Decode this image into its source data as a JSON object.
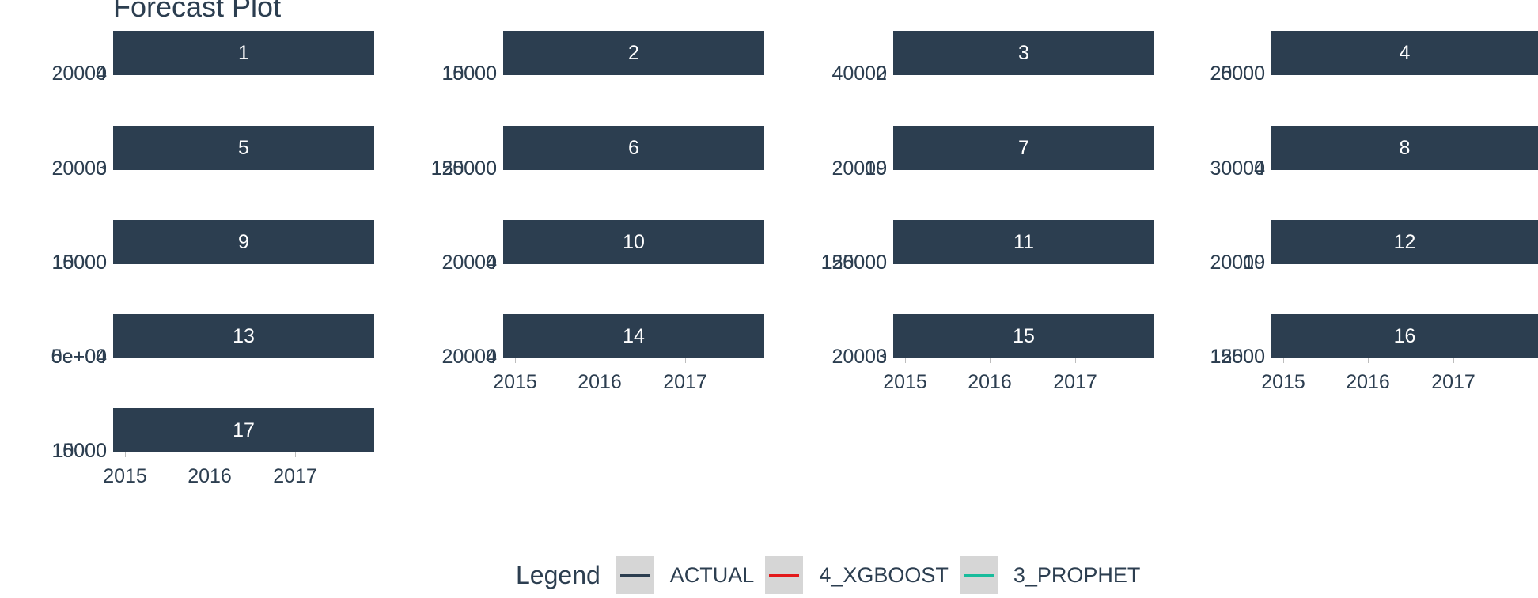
{
  "chart_data": {
    "type": "line",
    "title": "Forecast Plot",
    "xlabel": "",
    "ylabel": "",
    "x_ticks": [
      "2015",
      "2016",
      "2017"
    ],
    "legend": {
      "title": "Legend",
      "placement": "bottom",
      "entries": [
        {
          "name": "ACTUAL",
          "color": "#2c3e50"
        },
        {
          "name": "4_XGBOOST",
          "color": "#e31a1c"
        },
        {
          "name": "3_PROPHET",
          "color": "#18bc9c"
        }
      ]
    },
    "facets": [
      {
        "label": "1",
        "y_ticks": [
          "4",
          "20000"
        ]
      },
      {
        "label": "2",
        "y_ticks": [
          "15000",
          "10000"
        ]
      },
      {
        "label": "3",
        "y_ticks": [
          "2",
          "40000"
        ]
      },
      {
        "label": "4",
        "y_ticks": [
          "20000",
          "25000"
        ]
      },
      {
        "label": "5",
        "y_ticks": [
          "3",
          "20000"
        ]
      },
      {
        "label": "6",
        "y_ticks": [
          "125000",
          "150000"
        ]
      },
      {
        "label": "7",
        "y_ticks": [
          "19",
          "20000"
        ]
      },
      {
        "label": "8",
        "y_ticks": [
          "4",
          "30000"
        ]
      },
      {
        "label": "9",
        "y_ticks": [
          "15000",
          "10000"
        ]
      },
      {
        "label": "10",
        "y_ticks": [
          "4",
          "20000"
        ]
      },
      {
        "label": "11",
        "y_ticks": [
          "125000",
          "150000"
        ]
      },
      {
        "label": "12",
        "y_ticks": [
          "19",
          "20000"
        ]
      },
      {
        "label": "13",
        "y_ticks": [
          "5e+04",
          "0e+00"
        ]
      },
      {
        "label": "14",
        "y_ticks": [
          "4",
          "20000"
        ]
      },
      {
        "label": "15",
        "y_ticks": [
          "3",
          "20000"
        ]
      },
      {
        "label": "16",
        "y_ticks": [
          "12500",
          "15000"
        ]
      },
      {
        "label": "17",
        "y_ticks": [
          "15000",
          "10000"
        ]
      }
    ]
  }
}
